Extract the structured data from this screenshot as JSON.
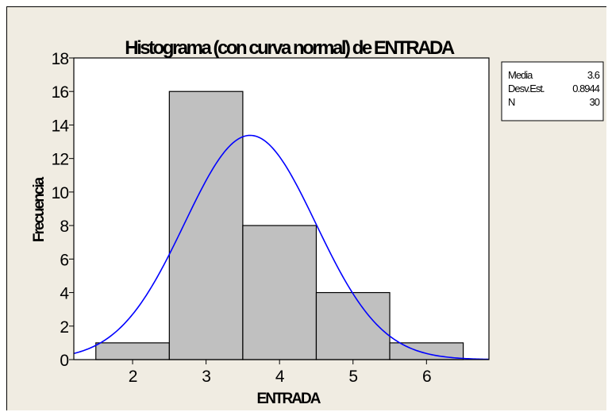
{
  "chart_data": {
    "type": "bar",
    "title": "Histograma (con curva normal) de ENTRADA",
    "xlabel": "ENTRADA",
    "ylabel": "Frecuencia",
    "xlim": [
      1.2,
      6.85
    ],
    "ylim": [
      0,
      18
    ],
    "x_ticks": [
      "2",
      "3",
      "4",
      "5",
      "6"
    ],
    "y_ticks": [
      "0",
      "2",
      "4",
      "6",
      "8",
      "10",
      "12",
      "14",
      "16",
      "18"
    ],
    "bins": [
      {
        "start": 1.5,
        "end": 2.5,
        "count": 1
      },
      {
        "start": 2.5,
        "end": 3.5,
        "count": 16
      },
      {
        "start": 3.5,
        "end": 4.5,
        "count": 8
      },
      {
        "start": 4.5,
        "end": 5.5,
        "count": 4
      },
      {
        "start": 5.5,
        "end": 6.5,
        "count": 1
      }
    ],
    "normal_curve": {
      "mean": 3.6,
      "stdev": 0.8944,
      "n": 30,
      "bin_width": 1
    },
    "legend": [
      {
        "label": "Media",
        "value": "3.6"
      },
      {
        "label": "Desv.Est.",
        "value": "0.8944"
      },
      {
        "label": "N",
        "value": "30"
      }
    ],
    "colors": {
      "bar_fill": "#c0c0c0",
      "curve": "#0000ff",
      "background": "#f0ece2",
      "plot_bg": "#ffffff"
    },
    "grid": false,
    "legend_position": "top-right, outside plot"
  }
}
